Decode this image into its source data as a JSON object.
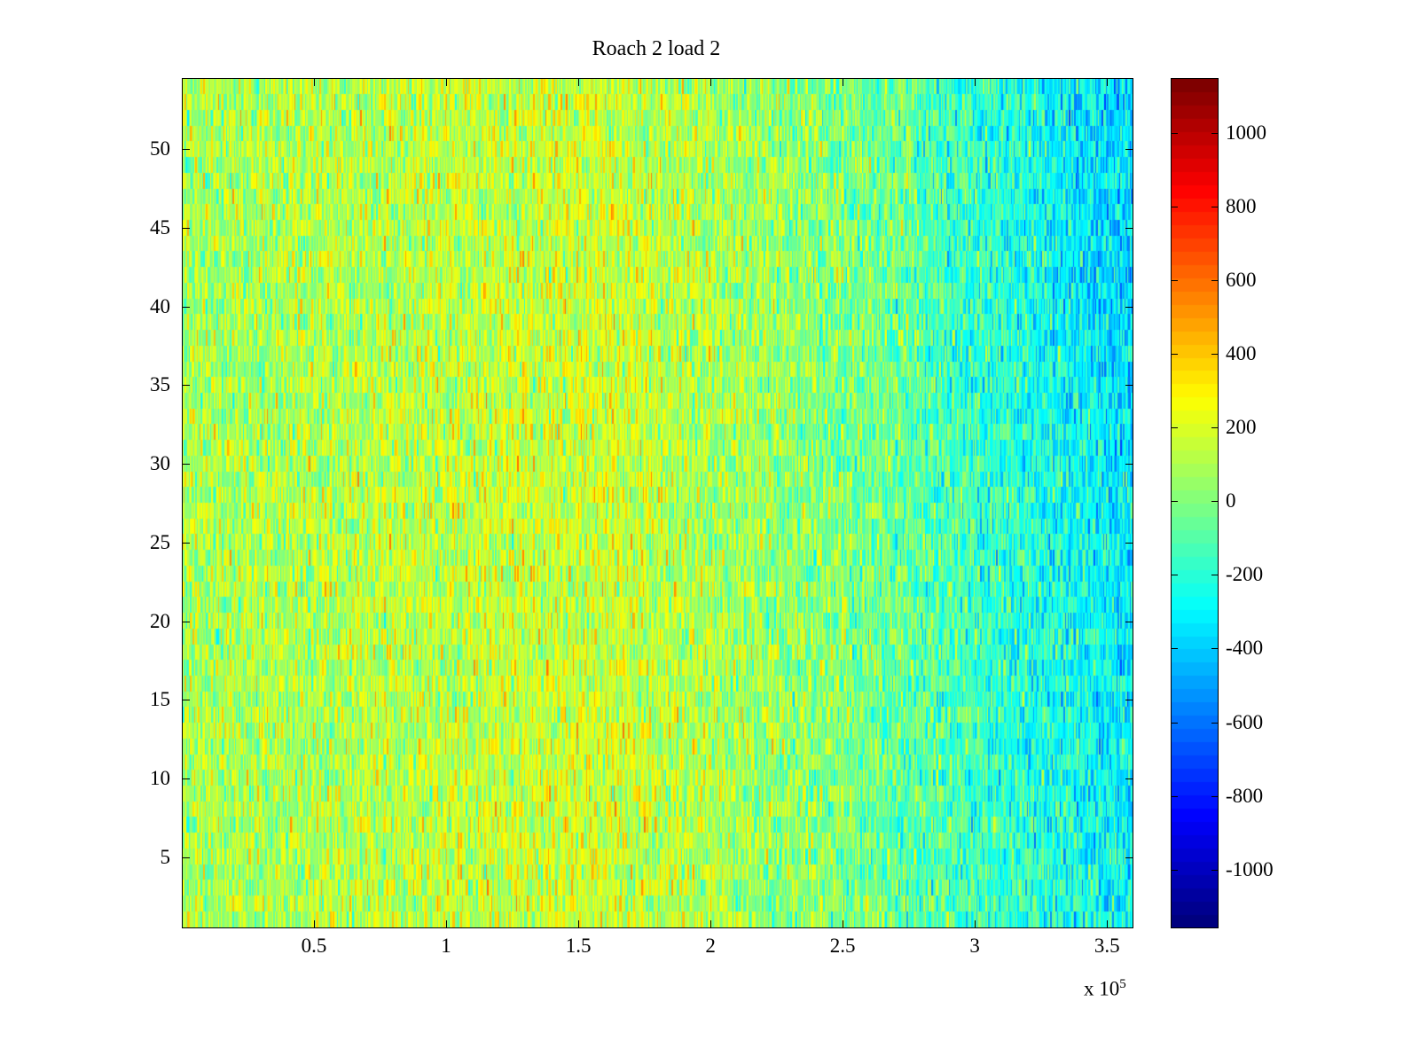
{
  "chart_data": {
    "type": "heatmap",
    "title": "Roach 2 load 2",
    "xlabel": "",
    "ylabel": "",
    "x_exponent_label": "x 10",
    "x_exponent": "5",
    "xlim": [
      0,
      360000
    ],
    "ylim": [
      0.5,
      54.5
    ],
    "rows": 54,
    "columns": 720,
    "xticks": [
      50000,
      100000,
      150000,
      200000,
      250000,
      300000,
      350000
    ],
    "xtick_labels": [
      "0.5",
      "1",
      "1.5",
      "2",
      "2.5",
      "3",
      "3.5"
    ],
    "yticks": [
      5,
      10,
      15,
      20,
      25,
      30,
      35,
      40,
      45,
      50
    ],
    "ytick_labels": [
      "5",
      "10",
      "15",
      "20",
      "25",
      "30",
      "35",
      "40",
      "45",
      "50"
    ],
    "colorbar": {
      "colormap": "jet",
      "clim": [
        -1160,
        1150
      ],
      "ticks": [
        1000,
        800,
        600,
        400,
        200,
        0,
        -200,
        -400,
        -600,
        -800,
        -1000
      ],
      "tick_labels": [
        "1000",
        "800",
        "600",
        "400",
        "200",
        "0",
        "-200",
        "-400",
        "-600",
        "-800",
        "-1000"
      ],
      "placement": "right"
    },
    "value_trend": {
      "description_values_by_x": [
        [
          0,
          80
        ],
        [
          160000,
          180
        ],
        [
          250000,
          0
        ],
        [
          360000,
          -280
        ]
      ],
      "noise_std": 150
    }
  }
}
